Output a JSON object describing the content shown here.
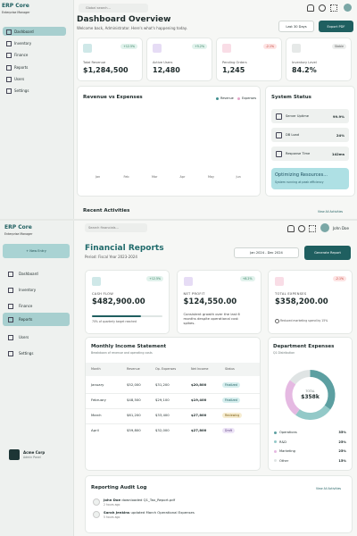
{
  "screen1": {
    "brand": {
      "name": "ERP Core",
      "tagline": "Enterprise Manager"
    },
    "nav": [
      "Dashboard",
      "Inventory",
      "Finance",
      "Reports",
      "Users",
      "Settings"
    ],
    "search": "Global search...",
    "title": "Dashboard Overview",
    "subtitle": "Welcome back, Administrator. Here's what's happening today.",
    "buttons": [
      "Last 30 Days",
      "Export PDF"
    ],
    "kpis": [
      {
        "badge": "+12.5%",
        "label": "Total Revenue",
        "value": "$1,284,500"
      },
      {
        "badge": "+5.2%",
        "label": "Active Users",
        "value": "12,480"
      },
      {
        "badge": "-2.1%",
        "label": "Pending Orders",
        "value": "1,245"
      },
      {
        "badge": "Stable",
        "label": "Inventory Level",
        "value": "84.2%"
      }
    ],
    "chart": {
      "title": "Revenue vs Expenses",
      "legend": [
        "Revenue",
        "Expenses"
      ],
      "months": [
        "Jan",
        "Feb",
        "Mar",
        "Apr",
        "May",
        "Jun"
      ]
    },
    "status": {
      "title": "System Status",
      "rows": [
        {
          "label": "Server Uptime",
          "value": "99.9%"
        },
        {
          "label": "DB Load",
          "value": "24%"
        },
        {
          "label": "Response Time",
          "value": "142ms"
        }
      ],
      "banner": {
        "title": "Optimizing Resources...",
        "text": "System running at peak efficiency"
      }
    },
    "activities": {
      "title": "Recent Activities",
      "link": "View All Activities"
    }
  },
  "screen2": {
    "brand": {
      "name": "ERP Core",
      "tagline": "Enterprise Manager"
    },
    "new_entry": "+ New Entry",
    "nav": [
      "Dashboard",
      "Inventory",
      "Finance",
      "Reports",
      "Users",
      "Settings"
    ],
    "account": {
      "name": "Acme Corp",
      "role": "Admin Panel"
    },
    "search": "Search financials...",
    "user": "John Doe",
    "title": "Financial Reports",
    "period": "Period: Fiscal Year 2023-2024",
    "date_range": "Jan 2024 - Dec 2024",
    "generate": "Generate Report",
    "cards": [
      {
        "badge": "+12.5%",
        "label": "CASH FLOW",
        "value": "$482,900.00",
        "note": "70% of quarterly target reached"
      },
      {
        "badge": "+8.2%",
        "label": "NET PROFIT",
        "value": "$124,550.00",
        "note": "Consistent growth over the last 6 months despite operational cost spikes."
      },
      {
        "badge": "-2.1%",
        "label": "TOTAL EXPENSES",
        "value": "$358,200.00",
        "note": "Reduced marketing spend by 15%"
      }
    ],
    "income": {
      "title": "Monthly Income Statement",
      "subtitle": "Breakdown of revenue and operating costs",
      "columns": [
        "Month",
        "Revenue",
        "Op. Expenses",
        "Net Income",
        "Status"
      ],
      "rows": [
        [
          "January",
          "$52,000",
          "$31,200",
          "$20,800",
          "Finalized"
        ],
        [
          "February",
          "$48,500",
          "$29,100",
          "$19,400",
          "Finalized"
        ],
        [
          "March",
          "$61,200",
          "$33,400",
          "$27,800",
          "Reviewing"
        ],
        [
          "April",
          "$59,800",
          "$32,000",
          "$27,800",
          "Draft"
        ]
      ]
    },
    "departments": {
      "title": "Department Expenses",
      "subtitle": "Q1 Distribution",
      "total_label": "TOTAL",
      "total": "$358k",
      "chart_data": {
        "type": "pie",
        "categories": [
          "Operations",
          "R&D",
          "Marketing",
          "Other"
        ],
        "values": [
          35,
          25,
          25,
          15
        ],
        "value_labels": [
          "35%",
          "25%",
          "25%",
          "15%"
        ],
        "colors": [
          "#5c9fa1",
          "#93c9c8",
          "#e5b9e2",
          "#dfe4e4"
        ]
      }
    },
    "audit": {
      "title": "Reporting Audit Log",
      "link": "View All Activities",
      "entries": [
        {
          "who": "John Doe",
          "what": "downloaded Q1_Tax_Report.pdf",
          "when": "2 hours ago"
        },
        {
          "who": "Sarah Jenkins",
          "what": "updated March Operational Expenses",
          "when": "5 hours ago"
        }
      ]
    }
  }
}
